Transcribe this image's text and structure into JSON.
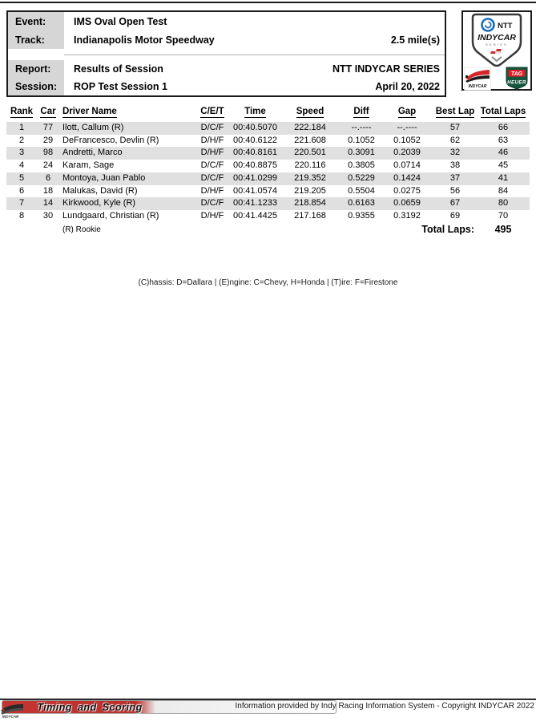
{
  "header": {
    "rows": [
      {
        "label": "Event:",
        "value": "IMS Oval Open Test",
        "right": ""
      },
      {
        "label": "Track:",
        "value": "Indianapolis Motor Speedway",
        "right": "2.5 mile(s)"
      },
      {
        "label": "Report:",
        "value": "Results of Session",
        "right": "NTT INDYCAR SERIES"
      },
      {
        "label": "Session:",
        "value": "ROP Test Session 1",
        "right": "April 20, 2022"
      }
    ]
  },
  "logos": {
    "series_shield": {
      "ntt": "NTT",
      "name": "INDYCAR",
      "sub": "SERIES"
    },
    "tag_heuer": {
      "tag": "TAG",
      "heuer": "HEUER"
    },
    "indycar_wing": {
      "name": "INDYCAR"
    },
    "timing_scoring": "Timing and Scoring"
  },
  "results": {
    "columns": [
      "Rank",
      "Car",
      "Driver Name",
      "C/E/T",
      "Time",
      "Speed",
      "Diff",
      "Gap",
      "Best Lap",
      "Total Laps"
    ],
    "rows": [
      [
        "1",
        "77",
        "Ilott, Callum (R)",
        "D/C/F",
        "00:40.5070",
        "222.184",
        "--.----",
        "--.----",
        "57",
        "66"
      ],
      [
        "2",
        "29",
        "DeFrancesco, Devlin (R)",
        "D/H/F",
        "00:40.6122",
        "221.608",
        "0.1052",
        "0.1052",
        "62",
        "63"
      ],
      [
        "3",
        "98",
        "Andretti, Marco",
        "D/H/F",
        "00:40.8161",
        "220.501",
        "0.3091",
        "0.2039",
        "32",
        "46"
      ],
      [
        "4",
        "24",
        "Karam, Sage",
        "D/C/F",
        "00:40.8875",
        "220.116",
        "0.3805",
        "0.0714",
        "38",
        "45"
      ],
      [
        "5",
        "6",
        "Montoya, Juan Pablo",
        "D/C/F",
        "00:41.0299",
        "219.352",
        "0.5229",
        "0.1424",
        "37",
        "41"
      ],
      [
        "6",
        "18",
        "Malukas, David (R)",
        "D/H/F",
        "00:41.0574",
        "219.205",
        "0.5504",
        "0.0275",
        "56",
        "84"
      ],
      [
        "7",
        "14",
        "Kirkwood, Kyle (R)",
        "D/C/F",
        "00:41.1233",
        "218.854",
        "0.6163",
        "0.0659",
        "67",
        "80"
      ],
      [
        "8",
        "30",
        "Lundgaard, Christian (R)",
        "D/H/F",
        "00:41.4425",
        "217.168",
        "0.9355",
        "0.3192",
        "69",
        "70"
      ]
    ],
    "rookie_note": "(R) Rookie",
    "totals": {
      "label": "Total Laps:",
      "value": "495"
    }
  },
  "legend": "(C)hassis: D=Dallara |  (E)ngine: C=Chevy, H=Honda  |  (T)ire: F=Firestone",
  "footer": {
    "info": "Information provided by Indy Racing Information System - Copyright INDYCAR 2022"
  },
  "colors": {
    "band": "#e0e0e0",
    "label_bg": "#d6d6d6",
    "accent_red": "#c53531",
    "tag_green": "#14563c",
    "ntt_blue": "#1b6eb5"
  }
}
